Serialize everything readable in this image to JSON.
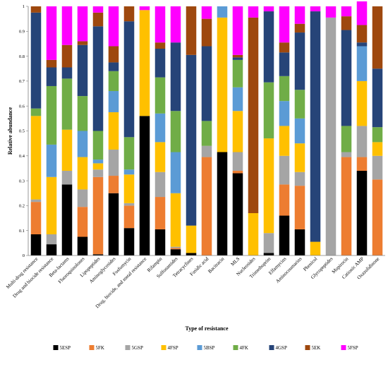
{
  "chart_data": {
    "type": "bar",
    "stacked": true,
    "normalized": true,
    "title": "",
    "xlabel": "Type of resistance",
    "ylabel": "Relative abundance",
    "ylim": [
      0,
      1
    ],
    "yticks": [
      "0",
      "0.1",
      "0.2",
      "0.3",
      "0.4",
      "0.5",
      "0.6",
      "0.7",
      "0.8",
      "0.9",
      "1"
    ],
    "grid": false,
    "legend_position": "bottom",
    "categories": [
      "Multi-drug resistance",
      "Drug and biocide resistance",
      "Beta-lactams",
      "Fluoroquinolones",
      "Lipopeptides",
      "Aminoglycosides",
      "Fosfomycin",
      "Drug, biocide, and metal resistance",
      "Rifampin",
      "Sulfonamides",
      "Tetracyclines",
      "Fusidic acid",
      "Bacitracin",
      "MLS",
      "Nucleosides",
      "Trimethoprim",
      "Elfamycins",
      "Aminocoumarins",
      "Phenicol",
      "Glycopeptides",
      "Mupirocin",
      "Cationic AMP",
      "Oxazolidinone"
    ],
    "series": [
      {
        "name": "5ESP",
        "color": "#000000",
        "values": [
          0.085,
          0.045,
          0.285,
          0.075,
          0.005,
          0.25,
          0.11,
          0.56,
          0.105,
          0.025,
          0.01,
          0,
          0.415,
          0.33,
          0,
          0.01,
          0.16,
          0.105,
          0,
          0,
          0,
          0.34,
          0
        ]
      },
      {
        "name": "5FK",
        "color": "#ED7D31",
        "values": [
          0.13,
          0,
          0,
          0.12,
          0.31,
          0.07,
          0.09,
          0,
          0.13,
          0.005,
          0,
          0.395,
          0,
          0.01,
          0,
          0,
          0.125,
          0.175,
          0,
          0,
          0.395,
          0.055,
          0.305
        ]
      },
      {
        "name": "5GSP",
        "color": "#A5A5A5",
        "values": [
          0.01,
          0.04,
          0.055,
          0.07,
          0.03,
          0.105,
          0.01,
          0,
          0.1,
          0.005,
          0,
          0.045,
          0,
          0.075,
          0,
          0.08,
          0.115,
          0.055,
          0,
          0.955,
          0.02,
          0.125,
          0.095
        ]
      },
      {
        "name": "4FSP",
        "color": "#FFC000",
        "values": [
          0.335,
          0.23,
          0.165,
          0.13,
          0.025,
          0.15,
          0.115,
          0.425,
          0.12,
          0.215,
          0.11,
          0,
          0.54,
          0.165,
          0.17,
          0.38,
          0.12,
          0.115,
          0.055,
          0,
          0,
          0.18,
          0.055
        ]
      },
      {
        "name": "5BSP",
        "color": "#5B9BD5",
        "values": [
          0,
          0.13,
          0,
          0.105,
          0.015,
          0.085,
          0.02,
          0,
          0.115,
          0.165,
          0,
          0,
          0.045,
          0.095,
          0,
          0,
          0.1,
          0.1,
          0,
          0,
          0,
          0.14,
          0
        ]
      },
      {
        "name": "4FK",
        "color": "#70AD47",
        "values": [
          0.03,
          0.235,
          0.205,
          0.14,
          0.115,
          0.08,
          0.13,
          0,
          0.145,
          0.165,
          0,
          0.1,
          0,
          0.11,
          0,
          0.225,
          0.1,
          0.115,
          0,
          0,
          0.105,
          0,
          0.06
        ]
      },
      {
        "name": "4GSP",
        "color": "#264478",
        "values": [
          0.385,
          0.075,
          0.045,
          0.205,
          0.42,
          0.035,
          0.465,
          0,
          0.115,
          0.275,
          0.685,
          0.3,
          0,
          0.01,
          0,
          0.285,
          0.095,
          0.23,
          0.925,
          0,
          0.385,
          0.015,
          0.235
        ]
      },
      {
        "name": "5EK",
        "color": "#9E480E",
        "values": [
          0.025,
          0.03,
          0.09,
          0.015,
          0.055,
          0.065,
          0.06,
          0,
          0.025,
          0,
          0.195,
          0.11,
          0,
          0.01,
          0.785,
          0,
          0.04,
          0.035,
          0,
          0,
          0.055,
          0.07,
          0.25
        ]
      },
      {
        "name": "5FSP",
        "color": "#FF00FF",
        "values": [
          0,
          0.215,
          0.155,
          0.14,
          0.025,
          0.16,
          0,
          0.015,
          0.145,
          0.145,
          0,
          0.05,
          0,
          0.195,
          0.045,
          0.02,
          0.145,
          0.07,
          0.02,
          0.045,
          0.04,
          0.095,
          0
        ]
      }
    ]
  }
}
